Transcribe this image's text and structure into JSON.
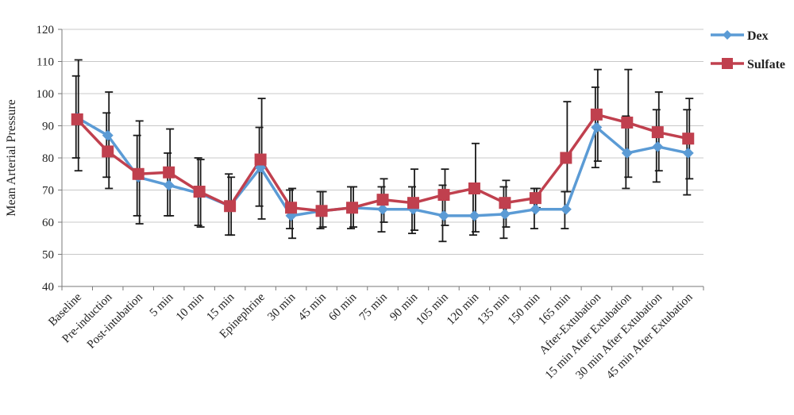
{
  "chart_data": {
    "type": "line",
    "title": "",
    "xlabel": "",
    "ylabel": "Mean Arterial Pressure",
    "ylim": [
      40,
      120
    ],
    "yticks": [
      40,
      50,
      60,
      70,
      80,
      90,
      100,
      110,
      120
    ],
    "grid": true,
    "legend_position": "right",
    "categories": [
      "Baseline",
      "Pre-induction",
      "Post-intubation",
      "5 min",
      "10 min",
      "15 min",
      "Epinephrine",
      "30 min",
      "45 min",
      "60 min",
      "75 min",
      "90 min",
      "105 min",
      "120 min",
      "135 min",
      "150 min",
      "165 min",
      "After-Extubation",
      "15 min After Extubation",
      "30 min After Extubation",
      "45 min After Extubation"
    ],
    "series": [
      {
        "name": "Dex",
        "color": "#5b9bd5",
        "marker": "diamond",
        "values": [
          92.5,
          87,
          74,
          71.5,
          69,
          65,
          77,
          62,
          63.5,
          64.5,
          64,
          64,
          62,
          62,
          62.5,
          64,
          64,
          89.5,
          81.5,
          83.5,
          81.5
        ],
        "error_low": [
          80,
          74,
          62,
          62,
          59,
          56,
          65,
          58,
          58,
          58,
          57,
          56.5,
          54,
          56,
          55,
          58,
          58,
          77,
          70.5,
          72.5,
          68.5
        ],
        "error_high": [
          105.5,
          94,
          87,
          81.5,
          80,
          75,
          89.5,
          70,
          69.5,
          71,
          71,
          71,
          71.5,
          69.5,
          71,
          70.5,
          69.5,
          102,
          93,
          95,
          95
        ]
      },
      {
        "name": "Sulfate",
        "color": "#c0404e",
        "marker": "square",
        "values": [
          92,
          82,
          75,
          75.5,
          69.5,
          65,
          79.5,
          64.5,
          63.5,
          64.5,
          67,
          66,
          68.5,
          70.5,
          66,
          67.5,
          80,
          93.5,
          91,
          88,
          86
        ],
        "error_low": [
          76,
          70.5,
          59.5,
          62,
          58.5,
          56,
          61,
          55,
          58.5,
          58.5,
          60,
          57.5,
          59,
          57,
          58.5,
          64.5,
          69.5,
          79,
          74,
          76,
          73.5
        ],
        "error_high": [
          110.5,
          100.5,
          91.5,
          89,
          79.5,
          74,
          98.5,
          70.5,
          69.5,
          71,
          73.5,
          76.5,
          76.5,
          84.5,
          73,
          70.5,
          97.5,
          107.5,
          107.5,
          100.5,
          98.5
        ]
      }
    ]
  }
}
